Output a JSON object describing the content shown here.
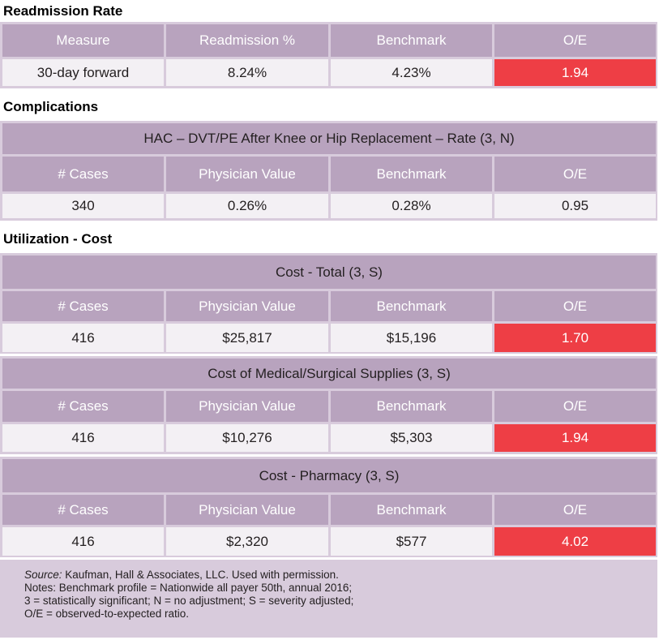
{
  "readmission": {
    "title": "Readmission Rate",
    "headers": [
      "Measure",
      "Readmission %",
      "Benchmark",
      "O/E"
    ],
    "row": [
      "30-day forward",
      "8.24%",
      "4.23%",
      "1.94"
    ]
  },
  "complications": {
    "title": "Complications",
    "subtitle": "HAC – DVT/PE After Knee or Hip Replacement – Rate (3, N)",
    "headers": [
      "# Cases",
      "Physician Value",
      "Benchmark",
      "O/E"
    ],
    "row": [
      "340",
      "0.26%",
      "0.28%",
      "0.95"
    ]
  },
  "utilization": {
    "title": "Utilization - Cost",
    "tables": [
      {
        "subtitle": "Cost - Total (3, S)",
        "headers": [
          "# Cases",
          "Physician Value",
          "Benchmark",
          "O/E"
        ],
        "row": [
          "416",
          "$25,817",
          "$15,196",
          "1.70"
        ]
      },
      {
        "subtitle": "Cost of Medical/Surgical Supplies (3, S)",
        "headers": [
          "# Cases",
          "Physician Value",
          "Benchmark",
          "O/E"
        ],
        "row": [
          "416",
          "$10,276",
          "$5,303",
          "1.94"
        ]
      },
      {
        "subtitle": "Cost - Pharmacy (3, S)",
        "headers": [
          "# Cases",
          "Physician Value",
          "Benchmark",
          "O/E"
        ],
        "row": [
          "416",
          "$2,320",
          "$577",
          "4.02"
        ]
      }
    ]
  },
  "notes": {
    "source_label": "Source:",
    "source_text": " Kaufman, Hall & Associates, LLC. Used with permission.",
    "line2": "Notes: Benchmark profile = Nationwide all payer 50th, annual 2016;",
    "line3": "3 = statistically significant; N = no adjustment; S = severity adjusted;",
    "line4": "O/E = observed-to-expected ratio."
  },
  "colors": {
    "header_bg": "#b8a3be",
    "block_bg": "#d8cbdc",
    "value_bg": "#f3f0f4",
    "flag_red": "#ee3e45"
  }
}
